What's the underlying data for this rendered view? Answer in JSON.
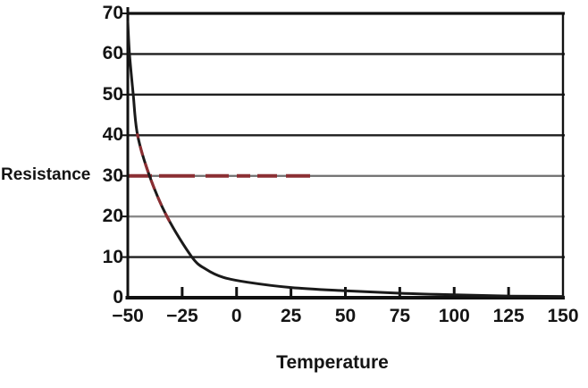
{
  "chart_data": {
    "type": "line",
    "title": "",
    "xlabel": "Temperature",
    "ylabel": "Resistance",
    "xlim": [
      -50,
      150
    ],
    "ylim": [
      0,
      70
    ],
    "x_ticks": [
      -50,
      -25,
      0,
      25,
      50,
      75,
      100,
      125,
      150
    ],
    "x_tick_labels": [
      "−50",
      "−25",
      "0",
      "25",
      "50",
      "75",
      "100",
      "125",
      "150"
    ],
    "y_ticks": [
      0,
      10,
      20,
      30,
      40,
      50,
      60,
      70
    ],
    "y_tick_labels": [
      "0",
      "10",
      "20",
      "30",
      "40",
      "50",
      "60",
      "70"
    ],
    "grid": "horizontal",
    "legend": "none",
    "series": [
      {
        "name": "resistance-vs-temperature-curve",
        "color": "#1a1a1a",
        "points": [
          [
            -50,
            68
          ],
          [
            -49.2,
            60
          ],
          [
            -47.5,
            50
          ],
          [
            -45.5,
            40
          ],
          [
            -40,
            30
          ],
          [
            -32,
            20
          ],
          [
            -20.5,
            10
          ],
          [
            -14,
            7
          ],
          [
            -6,
            5
          ],
          [
            5,
            3.8
          ],
          [
            25,
            2.5
          ],
          [
            50,
            1.7
          ],
          [
            75,
            1.1
          ],
          [
            100,
            0.7
          ],
          [
            125,
            0.4
          ],
          [
            150,
            0.3
          ]
        ]
      }
    ],
    "annotations": [
      {
        "type": "dashed-hline",
        "name": "reference-line-resistance-30",
        "y": 30,
        "x_start": -50,
        "x_end": 35,
        "color": "#8b2f33"
      },
      {
        "type": "dashed-curve-overlay",
        "name": "red-dashed-curve-segment",
        "y_range": [
          19,
          40
        ],
        "color": "#8b2f33"
      }
    ],
    "styles": {
      "background": "#ffffff",
      "axis_color": "#111111",
      "grid_color": "#1f1f1f",
      "grid_color_light": "#8a8a8a",
      "grid_color_mid": "#6e6e6e",
      "text_color": "#141414",
      "red_dash_color": "#8b2f33",
      "curve_color": "#1a1a1a"
    }
  }
}
